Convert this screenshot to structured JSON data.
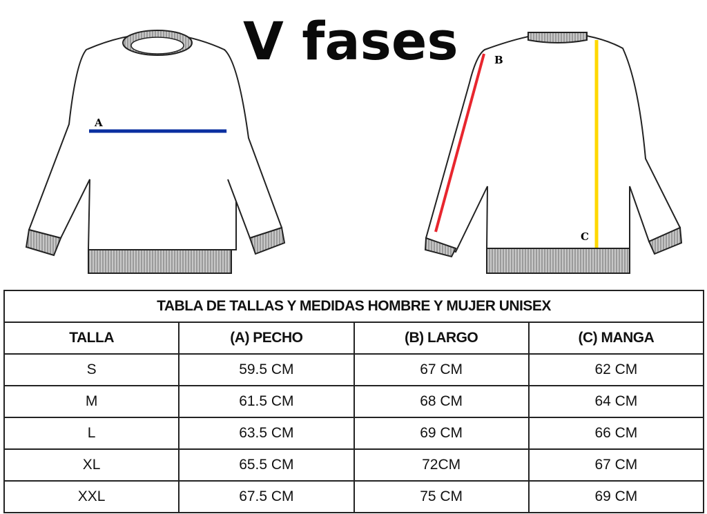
{
  "brand": "V fases",
  "diagram": {
    "front_label": "A",
    "back_labels": [
      "B",
      "C"
    ],
    "colors": {
      "pecho_line": "#0a2fa0",
      "largo_line": "#e8262e",
      "manga_line": "#ffd800",
      "rib": "#a8a8a8"
    }
  },
  "table": {
    "title": "TABLA DE TALLAS Y MEDIDAS HOMBRE Y MUJER UNISEX",
    "headers": [
      "TALLA",
      "(A) PECHO",
      "(B) LARGO",
      "(C) MANGA"
    ],
    "rows": [
      [
        "S",
        "59.5 CM",
        "67 CM",
        "62 CM"
      ],
      [
        "M",
        "61.5 CM",
        "68 CM",
        "64 CM"
      ],
      [
        "L",
        "63.5 CM",
        "69 CM",
        "66 CM"
      ],
      [
        "XL",
        "65.5 CM",
        "72CM",
        "67 CM"
      ],
      [
        "XXL",
        "67.5 CM",
        "75 CM",
        "69 CM"
      ]
    ]
  }
}
